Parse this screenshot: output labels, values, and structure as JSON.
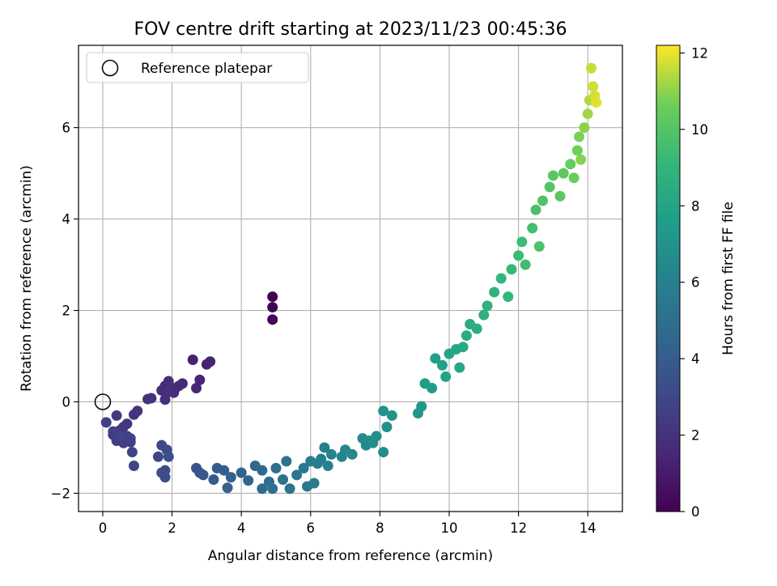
{
  "chart_data": {
    "type": "scatter",
    "title": "FOV centre drift starting at 2023/11/23 00:45:36",
    "xlabel": "Angular distance from reference (arcmin)",
    "ylabel": "Rotation from reference (arcmin)",
    "xlim": [
      -0.7,
      15
    ],
    "ylim": [
      -2.4,
      7.8
    ],
    "xticks": [
      0,
      2,
      4,
      6,
      8,
      10,
      12,
      14
    ],
    "yticks": [
      -2,
      0,
      2,
      4,
      6
    ],
    "grid": true,
    "legend": {
      "position": "top-left",
      "entries": [
        "Reference platepar"
      ]
    },
    "reference_point": {
      "x": 0,
      "y": 0
    },
    "colorbar": {
      "label": "Hours from first FF file",
      "colormap": "viridis",
      "range": [
        0,
        12.2
      ],
      "ticks": [
        0,
        2,
        4,
        6,
        8,
        10,
        12
      ]
    },
    "series": [
      {
        "x": [
          4.9,
          4.9,
          4.9,
          2.6,
          3.0,
          3.1,
          2.8,
          2.7,
          2.3,
          2.2,
          2.1,
          2.05,
          1.9,
          1.8,
          1.7,
          1.8,
          1.9,
          1.4,
          1.3,
          1.0,
          0.9,
          0.7,
          0.6,
          0.5,
          0.4,
          0.3,
          0.5,
          0.7,
          0.8,
          0.6,
          0.4,
          0.3,
          0.1,
          0.5,
          0.8,
          0.85,
          0.9,
          1.6,
          1.7,
          1.85,
          1.8,
          1.7,
          1.8,
          1.9,
          2.7,
          2.8,
          2.9,
          3.2,
          3.3,
          3.5,
          3.7,
          3.6,
          4.0,
          4.2,
          4.4,
          4.6,
          4.6,
          4.8,
          4.9,
          5.0,
          5.2,
          5.3,
          5.4,
          5.6,
          5.8,
          5.9,
          6.0,
          6.1,
          6.2,
          6.3,
          6.4,
          6.5,
          6.6,
          6.9,
          7.0,
          7.2,
          7.5,
          7.6,
          7.7,
          7.8,
          7.9,
          8.1,
          8.2,
          8.35,
          8.1,
          9.1,
          9.2,
          9.3,
          9.5,
          9.6,
          9.8,
          9.9,
          10.0,
          10.2,
          10.3,
          10.4,
          10.5,
          10.6,
          10.8,
          11.0,
          11.1,
          11.3,
          11.5,
          11.7,
          11.8,
          12.0,
          12.1,
          12.2,
          12.4,
          12.5,
          12.6,
          12.7,
          12.9,
          13.0,
          13.2,
          13.3,
          13.5,
          13.6,
          13.7,
          13.75,
          13.8,
          13.9,
          14.0,
          14.05,
          14.1,
          14.15,
          14.2,
          14.25
        ],
        "y": [
          2.3,
          2.07,
          1.8,
          0.92,
          0.82,
          0.88,
          0.48,
          0.3,
          0.4,
          0.35,
          0.3,
          0.2,
          0.45,
          0.35,
          0.25,
          0.05,
          0.22,
          0.08,
          0.06,
          -0.2,
          -0.28,
          -0.48,
          -0.55,
          -0.62,
          -0.3,
          -0.72,
          -0.82,
          -0.75,
          -0.88,
          -0.9,
          -0.85,
          -0.65,
          -0.45,
          -0.75,
          -0.8,
          -1.1,
          -1.4,
          -1.2,
          -0.95,
          -1.05,
          -1.5,
          -1.55,
          -1.65,
          -1.2,
          -1.45,
          -1.55,
          -1.6,
          -1.7,
          -1.45,
          -1.5,
          -1.65,
          -1.88,
          -1.55,
          -1.72,
          -1.4,
          -1.5,
          -1.9,
          -1.75,
          -1.9,
          -1.45,
          -1.7,
          -1.3,
          -1.9,
          -1.6,
          -1.45,
          -1.85,
          -1.3,
          -1.78,
          -1.35,
          -1.25,
          -1.0,
          -1.4,
          -1.15,
          -1.2,
          -1.05,
          -1.15,
          -0.8,
          -0.95,
          -0.85,
          -0.9,
          -0.75,
          -1.1,
          -0.55,
          -0.3,
          -0.2,
          -0.25,
          -0.1,
          0.4,
          0.3,
          0.95,
          0.8,
          0.55,
          1.05,
          1.15,
          0.75,
          1.2,
          1.45,
          1.7,
          1.6,
          1.9,
          2.1,
          2.4,
          2.7,
          2.3,
          2.9,
          3.2,
          3.5,
          3.0,
          3.8,
          4.2,
          3.4,
          4.4,
          4.7,
          4.95,
          4.5,
          5.0,
          5.2,
          4.9,
          5.5,
          5.8,
          5.3,
          6.0,
          6.3,
          6.6,
          7.3,
          6.9,
          6.7,
          6.55
        ],
        "hours": [
          0.0,
          0.1,
          0.2,
          1.25,
          1.3,
          1.35,
          1.4,
          1.45,
          1.5,
          1.55,
          1.6,
          1.65,
          1.7,
          1.75,
          1.8,
          1.85,
          1.9,
          1.95,
          2.0,
          2.05,
          2.1,
          2.15,
          2.2,
          2.25,
          2.3,
          2.35,
          2.4,
          2.45,
          2.5,
          2.55,
          2.6,
          2.65,
          2.7,
          2.75,
          2.8,
          2.85,
          2.9,
          3.0,
          3.05,
          3.1,
          3.2,
          3.25,
          3.3,
          3.35,
          3.6,
          3.7,
          3.8,
          3.9,
          4.0,
          4.1,
          4.2,
          4.25,
          4.35,
          4.45,
          4.55,
          4.65,
          4.7,
          4.8,
          4.9,
          5.0,
          5.1,
          5.2,
          5.3,
          5.4,
          5.5,
          5.6,
          5.7,
          5.75,
          5.8,
          5.85,
          5.9,
          6.0,
          6.1,
          6.2,
          6.3,
          6.4,
          6.55,
          6.6,
          6.65,
          6.7,
          6.75,
          6.8,
          6.9,
          7.0,
          7.1,
          7.2,
          7.3,
          7.5,
          7.6,
          7.7,
          7.8,
          7.9,
          8.0,
          8.1,
          8.2,
          8.3,
          8.4,
          8.5,
          8.6,
          8.7,
          8.8,
          8.9,
          9.0,
          9.1,
          9.2,
          9.3,
          9.4,
          9.5,
          9.6,
          9.7,
          9.8,
          9.9,
          10.0,
          10.1,
          10.2,
          10.3,
          10.45,
          10.55,
          10.65,
          10.8,
          10.9,
          11.0,
          11.2,
          11.4,
          11.6,
          11.7,
          11.8,
          11.9
        ]
      }
    ]
  }
}
